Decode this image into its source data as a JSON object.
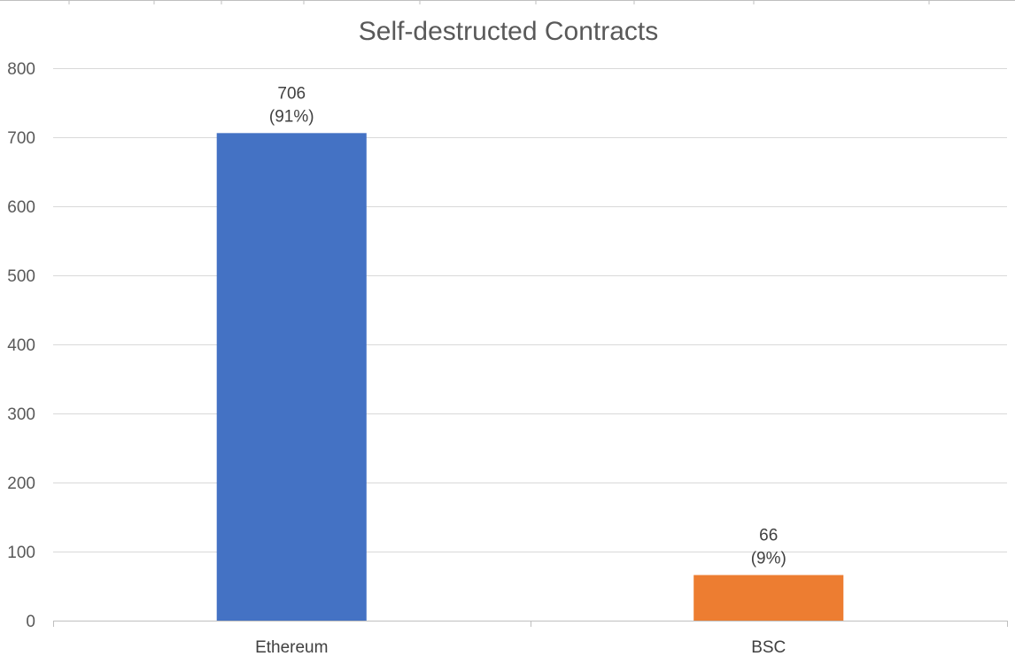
{
  "chart_data": {
    "type": "bar",
    "title": "Self-destructed Contracts",
    "xlabel": "",
    "ylabel": "",
    "categories": [
      "Ethereum",
      "BSC"
    ],
    "values": [
      706,
      66
    ],
    "value_labels": [
      "706",
      "66"
    ],
    "percent_labels": [
      "(91%)",
      "(9%)"
    ],
    "colors": [
      "#4472C4",
      "#ED7D31"
    ],
    "ylim": [
      0,
      800
    ],
    "yticks": [
      0,
      100,
      200,
      300,
      400,
      500,
      600,
      700,
      800
    ],
    "grid": true,
    "legend": "none"
  }
}
